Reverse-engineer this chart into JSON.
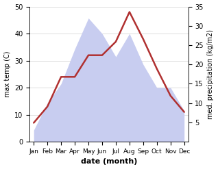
{
  "months": [
    "Jan",
    "Feb",
    "Mar",
    "Apr",
    "May",
    "Jun",
    "Jul",
    "Aug",
    "Sep",
    "Oct",
    "Nov",
    "Dec"
  ],
  "temperature": [
    7,
    13,
    24,
    24,
    32,
    32,
    37,
    48,
    38,
    27,
    17,
    11
  ],
  "precipitation": [
    3,
    10,
    15,
    24,
    32,
    28,
    22,
    28,
    20,
    14,
    14,
    8
  ],
  "temp_color": "#b03030",
  "precip_fill_color": "#c8cdf0",
  "precip_edge_color": "#c8cdf0",
  "xlabel": "date (month)",
  "ylabel_left": "max temp (C)",
  "ylabel_right": "med. precipitation (kg/m2)",
  "ylim_left": [
    0,
    50
  ],
  "ylim_right": [
    0,
    35
  ],
  "yticks_left": [
    0,
    10,
    20,
    30,
    40,
    50
  ],
  "yticks_right": [
    5,
    10,
    15,
    20,
    25,
    30,
    35
  ],
  "grid_color": "#d0d0d0",
  "fig_bg": "#ffffff",
  "temp_linewidth": 1.8
}
